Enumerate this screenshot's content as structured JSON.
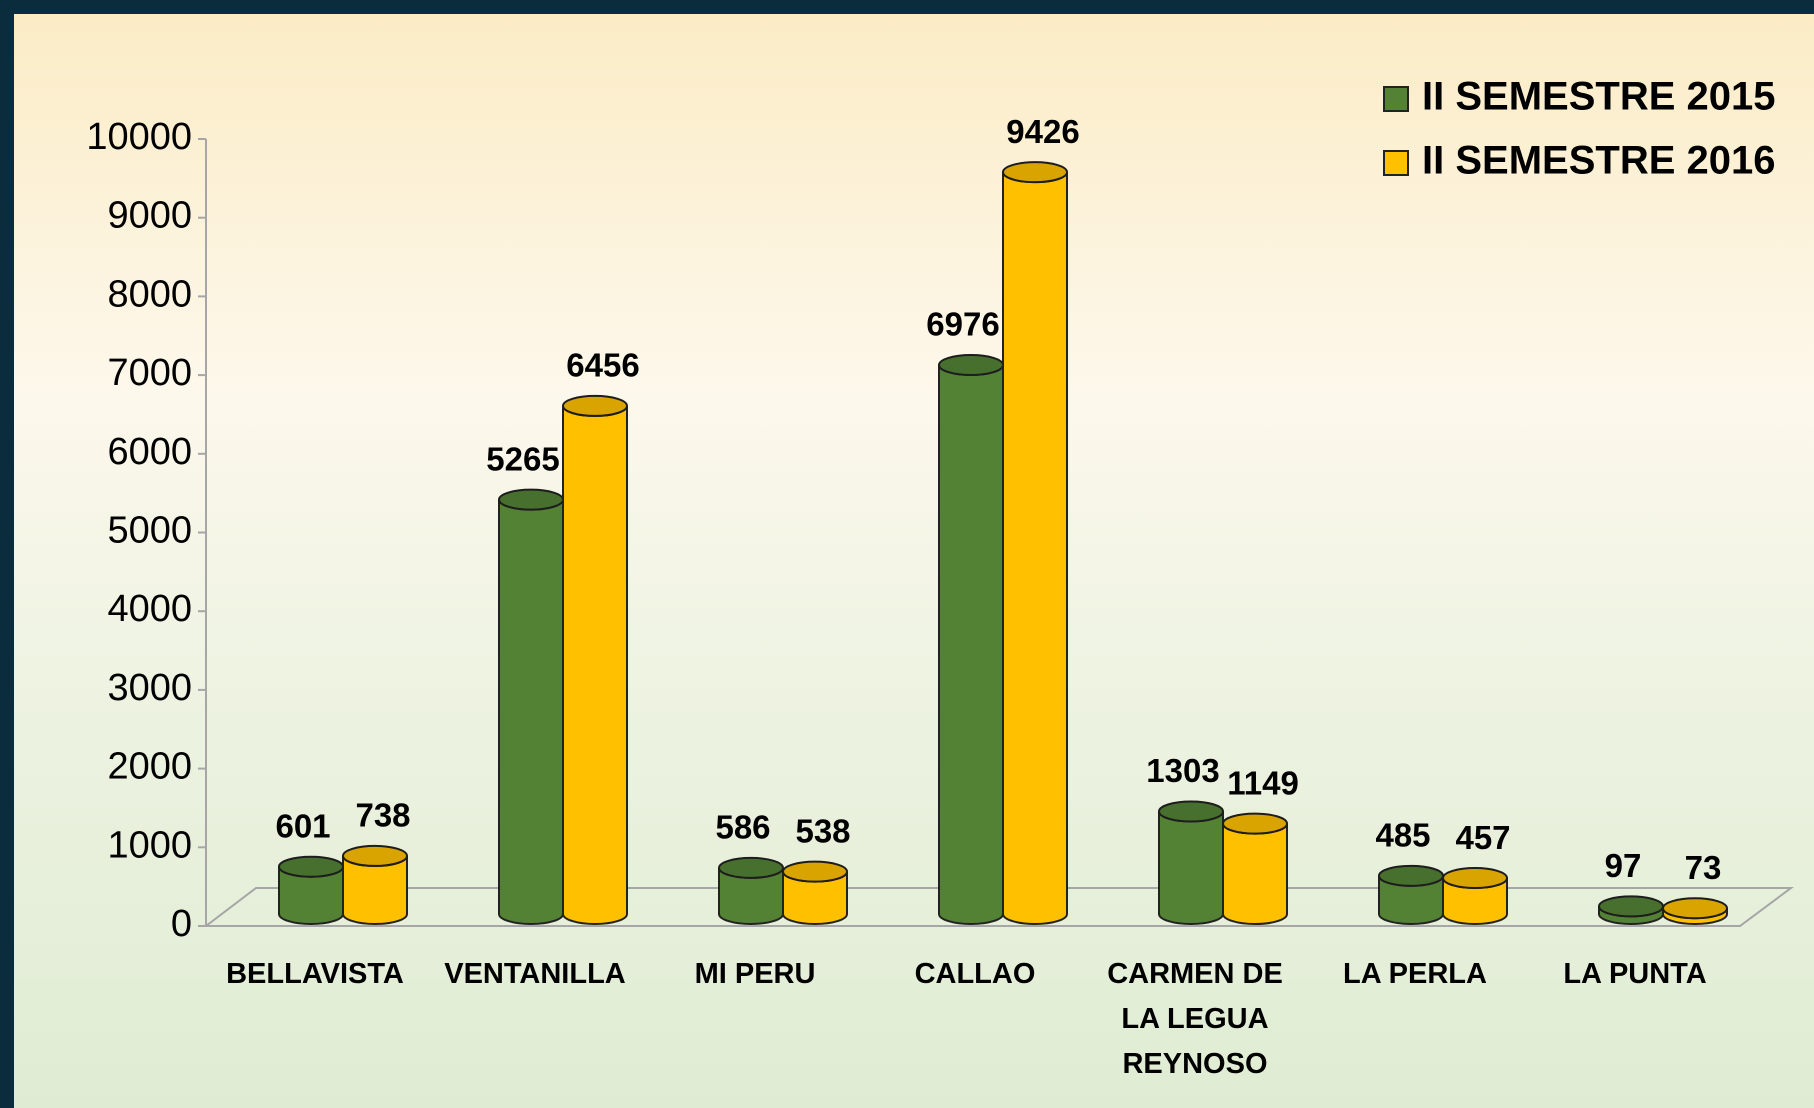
{
  "chart_data": {
    "type": "bar3d",
    "categories": [
      "BELLAVISTA",
      "VENTANILLA",
      "MI PERU",
      "CALLAO",
      "CARMEN DE LA LEGUA REYNOSO",
      "LA PERLA",
      "LA PUNTA"
    ],
    "series": [
      {
        "name": "II SEMESTRE 2015",
        "color": "#548235",
        "values": [
          601,
          5265,
          586,
          6976,
          1303,
          485,
          97
        ]
      },
      {
        "name": "II SEMESTRE 2016",
        "color": "#ffc000",
        "values": [
          738,
          6456,
          538,
          9426,
          1149,
          457,
          73
        ]
      }
    ],
    "ylim": [
      0,
      10000
    ],
    "yticks": [
      0,
      1000,
      2000,
      3000,
      4000,
      5000,
      6000,
      7000,
      8000,
      9000,
      10000
    ],
    "legend": "top-right"
  }
}
